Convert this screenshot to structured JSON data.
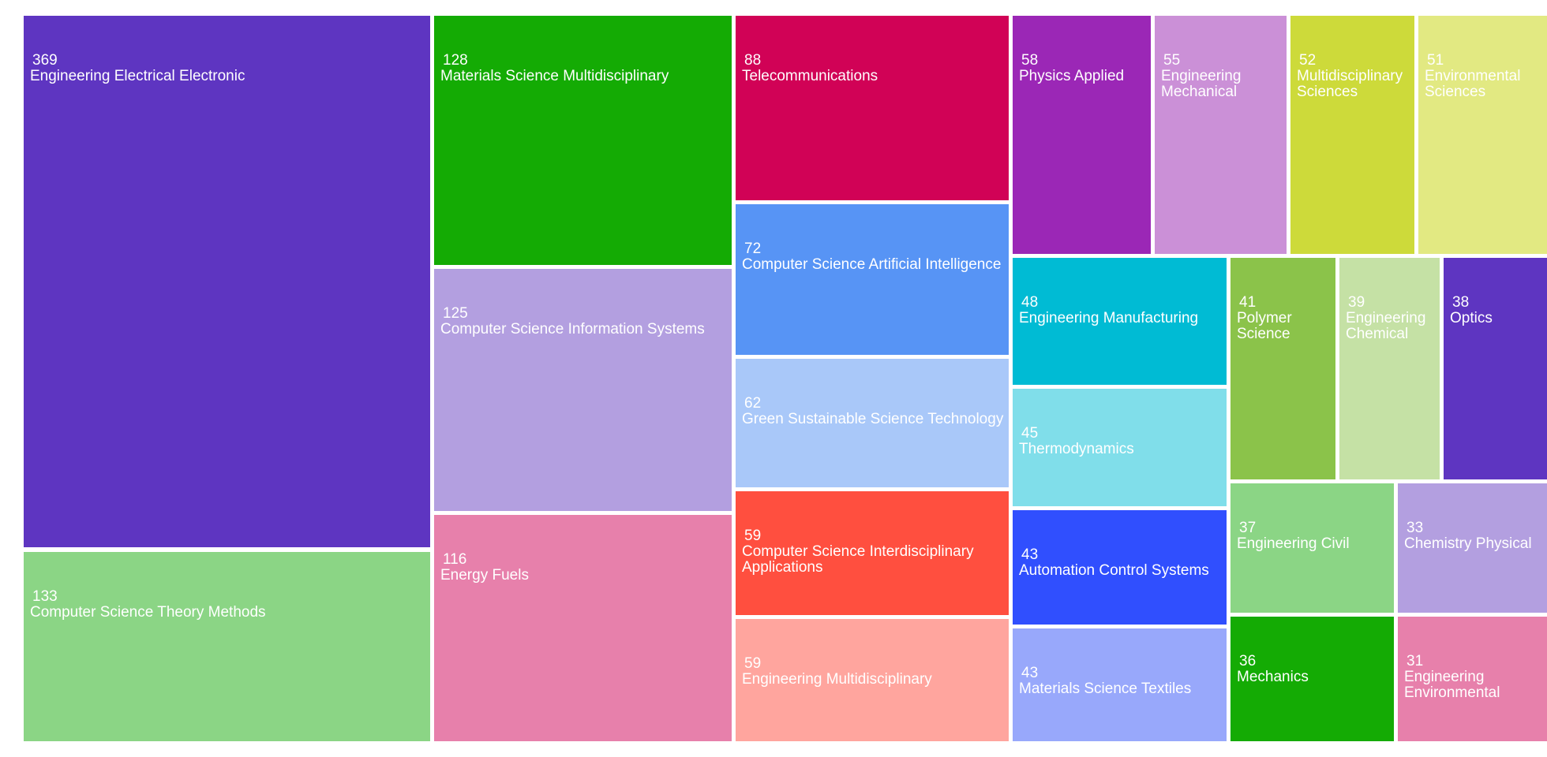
{
  "chart_data": {
    "type": "treemap",
    "items": [
      {
        "label": "Engineering Electrical Electronic",
        "value": 369,
        "color": "#5e35c1"
      },
      {
        "label": "Computer Science Theory Methods",
        "value": 133,
        "color": "#8bd585"
      },
      {
        "label": "Materials Science Multidisciplinary",
        "value": 128,
        "color": "#14ab04"
      },
      {
        "label": "Computer Science Information Systems",
        "value": 125,
        "color": "#b39fe0"
      },
      {
        "label": "Energy Fuels",
        "value": 116,
        "color": "#e780ab"
      },
      {
        "label": "Telecommunications",
        "value": 88,
        "color": "#d10256"
      },
      {
        "label": "Computer Science Artificial Intelligence",
        "value": 72,
        "color": "#5794f5"
      },
      {
        "label": "Green Sustainable Science Technology",
        "value": 62,
        "color": "#a9c8f9"
      },
      {
        "label": "Computer Science Interdisciplinary Applications",
        "value": 59,
        "color": "#ff4f3f"
      },
      {
        "label": "Engineering Multidisciplinary",
        "value": 59,
        "color": "#ffa59e"
      },
      {
        "label": "Physics Applied",
        "value": 58,
        "color": "#9b27b6"
      },
      {
        "label": "Engineering Mechanical",
        "value": 55,
        "color": "#cb90d7"
      },
      {
        "label": "Multidisciplinary Sciences",
        "value": 52,
        "color": "#cdda3a"
      },
      {
        "label": "Environmental Sciences",
        "value": 51,
        "color": "#e2e982"
      },
      {
        "label": "Engineering Manufacturing",
        "value": 48,
        "color": "#00bbd4"
      },
      {
        "label": "Thermodynamics",
        "value": 45,
        "color": "#80deea"
      },
      {
        "label": "Automation Control Systems",
        "value": 43,
        "color": "#304ffe"
      },
      {
        "label": "Materials Science Textiles",
        "value": 43,
        "color": "#98a8fb"
      },
      {
        "label": "Polymer Science",
        "value": 41,
        "color": "#8bc34a"
      },
      {
        "label": "Engineering Chemical",
        "value": 39,
        "color": "#c5e1a5"
      },
      {
        "label": "Optics",
        "value": 38,
        "color": "#5e35c1"
      },
      {
        "label": "Engineering Civil",
        "value": 37,
        "color": "#8bd585"
      },
      {
        "label": "Chemistry Physical",
        "value": 33,
        "color": "#b39fe0"
      },
      {
        "label": "Mechanics",
        "value": 36,
        "color": "#14ab04"
      },
      {
        "label": "Engineering Environmental",
        "value": 31,
        "color": "#e780ab"
      }
    ]
  }
}
